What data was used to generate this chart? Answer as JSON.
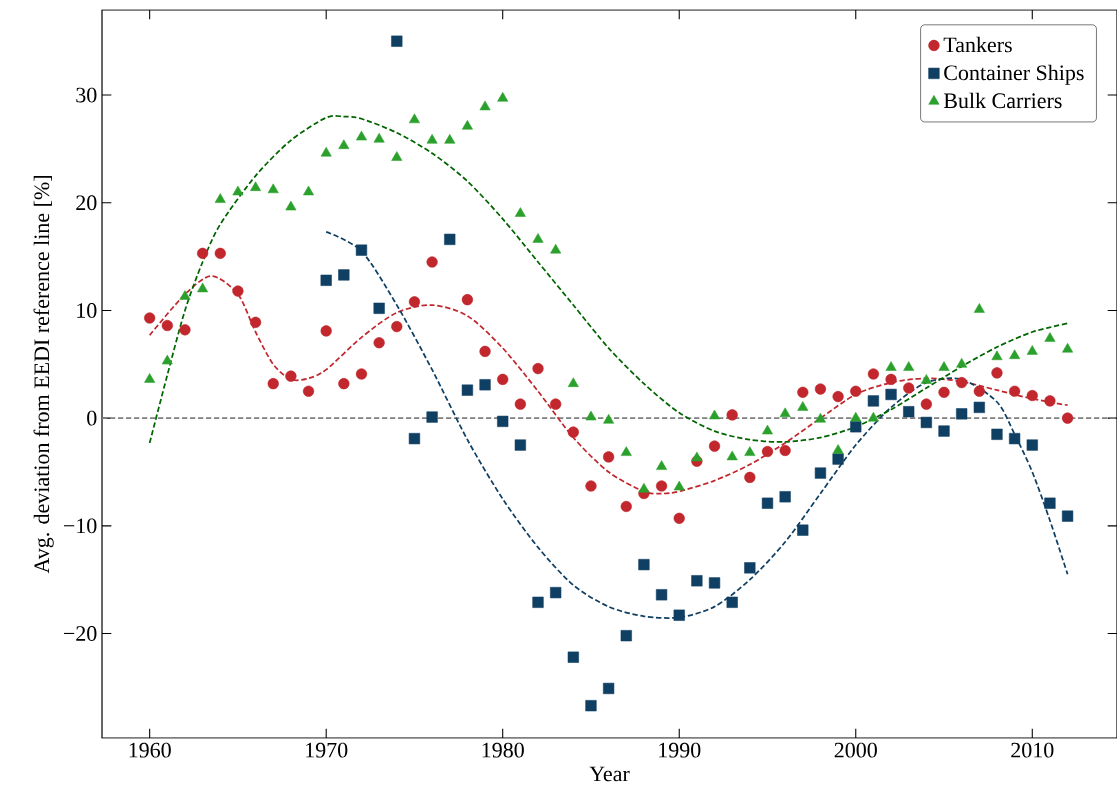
{
  "chart_data": {
    "type": "scatter",
    "xlabel": "Year",
    "ylabel": "Avg. deviation from EEDI reference line [%]",
    "xlim": [
      1957.3,
      2014.8
    ],
    "ylim": [
      -29.7,
      37.9
    ],
    "xticks": [
      1960,
      1970,
      1980,
      1990,
      2000,
      2010
    ],
    "yticks": [
      {
        "value": -20,
        "label": "−20"
      },
      {
        "value": -10,
        "label": "−10"
      },
      0,
      10,
      20,
      30
    ],
    "grid": false,
    "legend": "top right",
    "ref_lines": [
      {
        "axis": "y",
        "value": 0,
        "color": "#808080",
        "line_style": "dashed"
      }
    ],
    "series": [
      {
        "name": "Tankers",
        "marker": "circle",
        "color": "#c1272d",
        "x": [
          1960,
          1961,
          1962,
          1963,
          1964,
          1965,
          1966,
          1967,
          1968,
          1969,
          1970,
          1971,
          1972,
          1973,
          1974,
          1975,
          1976,
          1977,
          1978,
          1979,
          1980,
          1981,
          1982,
          1983,
          1984,
          1985,
          1986,
          1987,
          1988,
          1989,
          1990,
          1991,
          1992,
          1993,
          1994,
          1995,
          1996,
          1997,
          1998,
          1999,
          2000,
          2001,
          2002,
          2003,
          2004,
          2005,
          2006,
          2007,
          2008,
          2009,
          2010,
          2011,
          2012
        ],
        "values": [
          9.3,
          8.6,
          8.2,
          15.3,
          15.3,
          11.8,
          8.9,
          3.2,
          3.9,
          2.5,
          8.1,
          3.2,
          4.1,
          7.0,
          8.5,
          10.8,
          14.5,
          null,
          11.0,
          6.2,
          3.6,
          1.3,
          4.6,
          1.3,
          -1.3,
          -6.3,
          -3.6,
          -8.2,
          -7.0,
          -6.3,
          -9.3,
          -4.0,
          -2.6,
          0.3,
          -5.5,
          -3.1,
          -3.0,
          2.4,
          2.7,
          2.0,
          2.5,
          4.1,
          3.6,
          2.8,
          1.3,
          2.4,
          3.3,
          2.5,
          4.2,
          2.5,
          2.1,
          1.6,
          0.0
        ]
      },
      {
        "name": "Container Ships",
        "marker": "square",
        "color": "#0f3f63",
        "x": [
          1970,
          1971,
          1972,
          1973,
          1974,
          1975,
          1976,
          1977,
          1978,
          1979,
          1980,
          1981,
          1982,
          1983,
          1984,
          1985,
          1986,
          1987,
          1988,
          1989,
          1990,
          1991,
          1992,
          1993,
          1994,
          1995,
          1996,
          1997,
          1998,
          1999,
          2000,
          2001,
          2002,
          2003,
          2004,
          2005,
          2006,
          2007,
          2008,
          2009,
          2010,
          2011,
          2012
        ],
        "values": [
          12.8,
          13.3,
          15.6,
          10.2,
          35.0,
          -1.9,
          0.1,
          16.6,
          2.6,
          3.1,
          -0.3,
          -2.5,
          -17.1,
          -16.2,
          -22.2,
          -26.7,
          -25.1,
          -20.2,
          -13.6,
          -16.4,
          -18.3,
          -15.1,
          -15.3,
          -17.1,
          -13.9,
          -7.9,
          -7.3,
          -10.4,
          -5.1,
          -3.8,
          -0.8,
          1.6,
          2.2,
          0.6,
          -0.4,
          -1.2,
          0.4,
          1.0,
          -1.5,
          -1.9,
          -2.5,
          -7.9,
          -9.1
        ]
      },
      {
        "name": "Bulk Carriers",
        "marker": "triangle",
        "color": "#2ca02c",
        "x": [
          1960,
          1961,
          1962,
          1963,
          1964,
          1965,
          1966,
          1967,
          1968,
          1969,
          1970,
          1971,
          1972,
          1973,
          1974,
          1975,
          1976,
          1977,
          1978,
          1979,
          1980,
          1981,
          1982,
          1983,
          1984,
          1985,
          1986,
          1987,
          1988,
          1989,
          1990,
          1991,
          1992,
          1993,
          1994,
          1995,
          1996,
          1997,
          1998,
          1999,
          2000,
          2001,
          2002,
          2003,
          2004,
          2005,
          2006,
          2007,
          2008,
          2009,
          2010,
          2011,
          2012
        ],
        "values": [
          3.6,
          5.3,
          11.3,
          12.0,
          20.3,
          21.0,
          21.4,
          21.2,
          19.6,
          21.0,
          24.6,
          25.3,
          26.1,
          25.9,
          24.2,
          27.7,
          25.8,
          25.8,
          27.1,
          28.9,
          29.7,
          19.0,
          16.6,
          15.6,
          3.2,
          0.1,
          -0.2,
          -3.2,
          -6.6,
          -4.5,
          -6.4,
          -3.7,
          0.2,
          -3.6,
          -3.2,
          -1.2,
          0.4,
          1.0,
          -0.1,
          -3.0,
          0.0,
          0.0,
          4.7,
          4.7,
          3.5,
          4.7,
          5.0,
          10.1,
          5.7,
          5.8,
          6.2,
          7.4,
          6.4
        ]
      },
      {
        "type": "line",
        "line_style": "dashed",
        "color": "#c1272d",
        "x": [
          1960,
          1962,
          1963.5,
          1965,
          1966,
          1967,
          1968,
          1969,
          1970,
          1972,
          1974,
          1976,
          1978,
          1980,
          1982,
          1984,
          1986,
          1988,
          1989,
          1990,
          1992,
          1994,
          1996,
          1998,
          2000,
          2002,
          2004,
          2006,
          2008,
          2010,
          2012
        ],
        "values": [
          7.7,
          11.5,
          13.2,
          11.5,
          8.0,
          5.0,
          3.6,
          3.7,
          4.5,
          7.5,
          9.8,
          10.5,
          9.5,
          6.5,
          2.5,
          -1.8,
          -5.0,
          -6.8,
          -7.0,
          -6.8,
          -5.8,
          -4.3,
          -2.3,
          0.0,
          2.2,
          3.3,
          3.7,
          3.4,
          2.6,
          1.8,
          1.2
        ]
      },
      {
        "type": "line",
        "line_style": "dashed",
        "color": "#0f3f63",
        "x": [
          1970,
          1972,
          1974,
          1976,
          1978,
          1980,
          1982,
          1984,
          1986,
          1988,
          1990,
          1992,
          1994,
          1996,
          1998,
          2000,
          2002,
          2004,
          2006,
          2008,
          2009,
          2010,
          2011,
          2012
        ],
        "values": [
          17.3,
          15.5,
          10.5,
          4.5,
          -2.0,
          -7.5,
          -12.0,
          -15.5,
          -17.5,
          -18.4,
          -18.5,
          -17.5,
          -15.0,
          -11.5,
          -7.0,
          -2.5,
          1.0,
          3.3,
          3.6,
          1.5,
          -1.5,
          -5.0,
          -9.5,
          -14.5
        ]
      },
      {
        "type": "line",
        "line_style": "dashed",
        "color": "#006400",
        "x": [
          1960,
          1961,
          1962,
          1963,
          1964,
          1966,
          1968,
          1970,
          1971,
          1972,
          1974,
          1976,
          1978,
          1980,
          1982,
          1984,
          1986,
          1988,
          1990,
          1992,
          1994,
          1996,
          1998,
          2000,
          2002,
          2004,
          2006,
          2008,
          2010,
          2012
        ],
        "values": [
          -2.3,
          4.0,
          10.0,
          14.5,
          18.0,
          22.5,
          25.8,
          27.9,
          28.0,
          27.8,
          26.5,
          24.6,
          22.0,
          18.5,
          14.5,
          10.5,
          6.5,
          3.2,
          0.5,
          -1.2,
          -2.0,
          -2.2,
          -1.8,
          -0.8,
          0.8,
          2.8,
          4.8,
          6.6,
          8.0,
          8.8
        ]
      }
    ]
  }
}
